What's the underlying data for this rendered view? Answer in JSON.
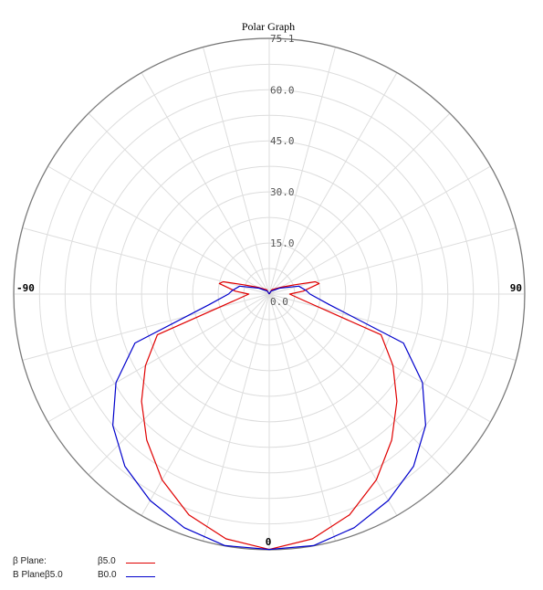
{
  "chart_data": {
    "type": "polar",
    "title": "Polar Graph",
    "radial_axis": {
      "range": [
        0,
        75.1
      ],
      "ticks": [
        "0.0",
        "15.0",
        "30.0",
        "45.0",
        "60.0",
        "75.1"
      ],
      "tick_values": [
        0,
        15,
        30,
        45,
        60,
        75.1
      ]
    },
    "angular_axis": {
      "labels": [
        {
          "angle": -90,
          "text": "-90"
        },
        {
          "angle": 90,
          "text": "90"
        },
        {
          "angle": 0,
          "text": "0"
        }
      ],
      "spoke_step_deg": 15,
      "zero_direction": "bottom"
    },
    "grid": true,
    "legend_position": "bottom-left",
    "series": [
      {
        "name": "β Plane:",
        "value": "β5.0",
        "color": "#e00000",
        "points": [
          {
            "theta": -180,
            "r": 0
          },
          {
            "theta": -150,
            "r": 1.5
          },
          {
            "theta": -120,
            "r": 4
          },
          {
            "theta": -110,
            "r": 8
          },
          {
            "theta": -105,
            "r": 14
          },
          {
            "theta": -102,
            "r": 15
          },
          {
            "theta": -95,
            "r": 10
          },
          {
            "theta": -90,
            "r": 6
          },
          {
            "theta": -80,
            "r": 10
          },
          {
            "theta": -70,
            "r": 35
          },
          {
            "theta": -60,
            "r": 42
          },
          {
            "theta": -50,
            "r": 49
          },
          {
            "theta": -40,
            "r": 56
          },
          {
            "theta": -30,
            "r": 63
          },
          {
            "theta": -20,
            "r": 69
          },
          {
            "theta": -10,
            "r": 73
          },
          {
            "theta": 0,
            "r": 75
          },
          {
            "theta": 10,
            "r": 73
          },
          {
            "theta": 20,
            "r": 69
          },
          {
            "theta": 30,
            "r": 63
          },
          {
            "theta": 40,
            "r": 56
          },
          {
            "theta": 50,
            "r": 49
          },
          {
            "theta": 60,
            "r": 42
          },
          {
            "theta": 70,
            "r": 35
          },
          {
            "theta": 80,
            "r": 10
          },
          {
            "theta": 90,
            "r": 6
          },
          {
            "theta": 95,
            "r": 10
          },
          {
            "theta": 102,
            "r": 15
          },
          {
            "theta": 105,
            "r": 14
          },
          {
            "theta": 110,
            "r": 8
          },
          {
            "theta": 120,
            "r": 4
          },
          {
            "theta": 150,
            "r": 1.5
          },
          {
            "theta": 180,
            "r": 0
          }
        ]
      },
      {
        "name": "B Planeβ5.0",
        "value": "B0.0",
        "color": "#0000cc",
        "points": [
          {
            "theta": -180,
            "r": 0
          },
          {
            "theta": -150,
            "r": 1
          },
          {
            "theta": -120,
            "r": 3.5
          },
          {
            "theta": -105,
            "r": 9
          },
          {
            "theta": -95,
            "r": 11
          },
          {
            "theta": -90,
            "r": 12
          },
          {
            "theta": -80,
            "r": 18
          },
          {
            "theta": -70,
            "r": 42
          },
          {
            "theta": -60,
            "r": 52
          },
          {
            "theta": -50,
            "r": 60
          },
          {
            "theta": -40,
            "r": 66
          },
          {
            "theta": -30,
            "r": 70
          },
          {
            "theta": -20,
            "r": 73
          },
          {
            "theta": -10,
            "r": 75
          },
          {
            "theta": 0,
            "r": 75
          },
          {
            "theta": 10,
            "r": 75
          },
          {
            "theta": 20,
            "r": 73
          },
          {
            "theta": 30,
            "r": 70
          },
          {
            "theta": 40,
            "r": 66
          },
          {
            "theta": 50,
            "r": 60
          },
          {
            "theta": 60,
            "r": 52
          },
          {
            "theta": 70,
            "r": 42
          },
          {
            "theta": 80,
            "r": 18
          },
          {
            "theta": 90,
            "r": 12
          },
          {
            "theta": 95,
            "r": 11
          },
          {
            "theta": 105,
            "r": 9
          },
          {
            "theta": 120,
            "r": 3.5
          },
          {
            "theta": 150,
            "r": 1
          },
          {
            "theta": 180,
            "r": 0
          }
        ]
      }
    ]
  }
}
